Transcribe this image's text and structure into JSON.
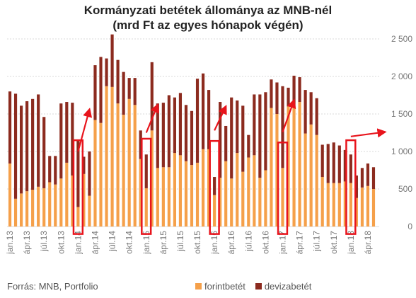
{
  "title_line1": "Kormányzati betétek állománya az MNB-nél",
  "title_line2": "(mrd Ft az egyes hónapok végén)",
  "source": "Forrás: MNB, Portfolio",
  "colors": {
    "forint": "#f5a04a",
    "deviza": "#8c2b1f",
    "highlight": "#e8141c",
    "grid": "#d9d9d9",
    "axis_text": "#777777"
  },
  "chart_data": {
    "type": "bar",
    "stacked": true,
    "ylim": [
      0,
      2500
    ],
    "yticks": [
      "0",
      "500",
      "1 000",
      "1 500",
      "2 000",
      "2 500"
    ],
    "ytick_values": [
      0,
      500,
      1000,
      1500,
      2000,
      2500
    ],
    "grid": true,
    "legend_position": "bottom",
    "xtick_labels": [
      {
        "index": 0,
        "label": "jan.13"
      },
      {
        "index": 3,
        "label": "ápr.13"
      },
      {
        "index": 6,
        "label": "júl.13"
      },
      {
        "index": 9,
        "label": "okt.13"
      },
      {
        "index": 12,
        "label": "jan.14"
      },
      {
        "index": 15,
        "label": "ápr.14"
      },
      {
        "index": 18,
        "label": "júl.14"
      },
      {
        "index": 21,
        "label": "okt.14"
      },
      {
        "index": 24,
        "label": "jan.15"
      },
      {
        "index": 27,
        "label": "ápr.15"
      },
      {
        "index": 30,
        "label": "júl.15"
      },
      {
        "index": 33,
        "label": "okt.15"
      },
      {
        "index": 36,
        "label": "jan.16"
      },
      {
        "index": 39,
        "label": "ápr.16"
      },
      {
        "index": 42,
        "label": "júl.16"
      },
      {
        "index": 45,
        "label": "okt.16"
      },
      {
        "index": 48,
        "label": "jan.17"
      },
      {
        "index": 51,
        "label": "ápr.17"
      },
      {
        "index": 54,
        "label": "júl.17"
      },
      {
        "index": 57,
        "label": "okt.17"
      },
      {
        "index": 60,
        "label": "jan.18"
      },
      {
        "index": 63,
        "label": "ápr.18"
      }
    ],
    "series": [
      {
        "name": "forintbetét",
        "values": [
          840,
          370,
          440,
          470,
          490,
          530,
          510,
          590,
          560,
          640,
          850,
          680,
          260,
          700,
          410,
          1420,
          1380,
          1870,
          1860,
          1640,
          1490,
          1700,
          1620,
          900,
          510,
          1280,
          780,
          790,
          790,
          980,
          950,
          870,
          820,
          850,
          1030,
          1030,
          420,
          650,
          870,
          640,
          980,
          730,
          920,
          950,
          650,
          750,
          1580,
          1500,
          780,
          1600,
          1580,
          1660,
          1240,
          1360,
          1220,
          660,
          580,
          580,
          580,
          600,
          580,
          380,
          520,
          540,
          500
        ],
        "note": "approximate"
      },
      {
        "name": "devizabetét",
        "values": [
          960,
          1400,
          1170,
          1200,
          1210,
          1230,
          950,
          350,
          380,
          1000,
          810,
          970,
          890,
          230,
          590,
          730,
          880,
          370,
          700,
          580,
          570,
          280,
          360,
          380,
          450,
          910,
          860,
          860,
          960,
          740,
          830,
          750,
          720,
          1120,
          1010,
          790,
          240,
          1010,
          470,
          1080,
          700,
          880,
          300,
          810,
          1110,
          1040,
          380,
          420,
          1090,
          250,
          430,
          330,
          580,
          430,
          490,
          430,
          520,
          540,
          500,
          420,
          380,
          300,
          260,
          300,
          290
        ]
      }
    ],
    "highlight_boxes": [
      {
        "index": 12,
        "bottom": -100,
        "top": 1150
      },
      {
        "index": 24,
        "bottom": -100,
        "top": 1170
      },
      {
        "index": 36,
        "bottom": -100,
        "top": 1140
      },
      {
        "index": 48,
        "bottom": -100,
        "top": 1120
      },
      {
        "index": 60,
        "bottom": -100,
        "top": 1150
      }
    ],
    "trend_arrows": [
      {
        "from_index": 12,
        "from_value": 1000,
        "to_index": 14,
        "to_value": 1560
      },
      {
        "from_index": 24,
        "from_value": 1250,
        "to_index": 26,
        "to_value": 1620
      },
      {
        "from_index": 36,
        "from_value": 1280,
        "to_index": 38,
        "to_value": 1600
      },
      {
        "from_index": 48,
        "from_value": 1260,
        "to_index": 50,
        "to_value": 1680
      },
      {
        "from_index": 60,
        "from_value": 1200,
        "to_index": 66,
        "to_value": 1260
      }
    ]
  }
}
